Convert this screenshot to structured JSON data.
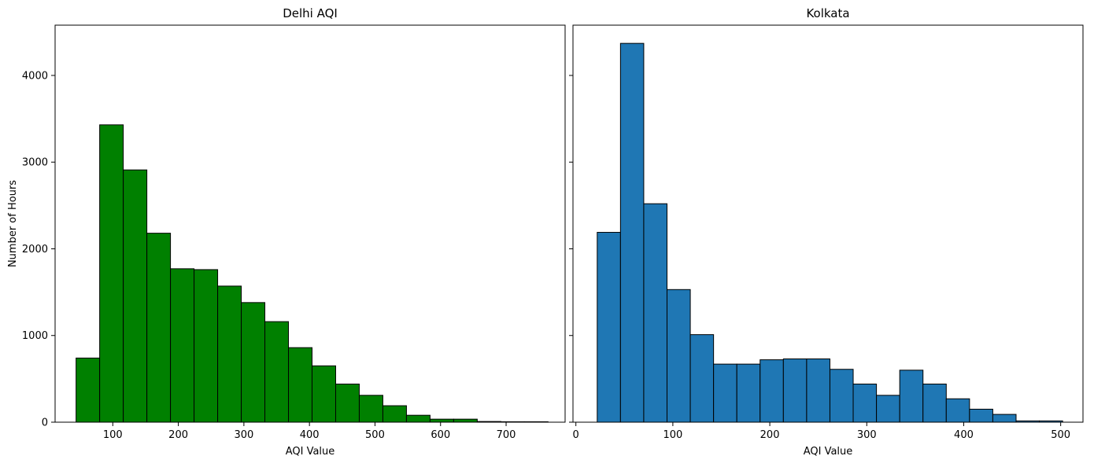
{
  "chart_data": [
    {
      "type": "bar",
      "title": "Delhi AQI",
      "xlabel": "AQI Value",
      "ylabel": "Number of Hours",
      "xlim": [
        12,
        790
      ],
      "ylim": [
        0,
        4580
      ],
      "xticks": [
        100,
        200,
        300,
        400,
        500,
        600,
        700
      ],
      "yticks": [
        0,
        1000,
        2000,
        3000,
        4000
      ],
      "color": "#008000",
      "edgecolor": "#000000",
      "bin_edges": [
        44,
        80,
        116,
        152,
        188,
        224,
        260,
        296,
        332,
        368,
        404,
        440,
        476,
        512,
        548,
        584,
        620,
        656,
        692,
        728,
        764
      ],
      "values": [
        740,
        3430,
        2910,
        2180,
        1770,
        1760,
        1570,
        1380,
        1160,
        860,
        650,
        440,
        310,
        190,
        80,
        35,
        35,
        8,
        5,
        5
      ],
      "grid": false
    },
    {
      "type": "bar",
      "title": "Kolkata",
      "xlabel": "AQI Value",
      "ylabel": "",
      "xlim": [
        -3,
        523
      ],
      "ylim": [
        0,
        4580
      ],
      "xticks": [
        0,
        100,
        200,
        300,
        400,
        500
      ],
      "yticks": [
        0,
        1000,
        2000,
        3000,
        4000
      ],
      "show_ytick_labels": false,
      "color": "#1f77b4",
      "edgecolor": "#000000",
      "bin_edges": [
        22,
        46,
        70,
        94,
        118,
        142,
        166,
        190,
        214,
        238,
        262,
        286,
        310,
        334,
        358,
        382,
        406,
        430,
        454,
        478,
        502
      ],
      "values": [
        2190,
        4370,
        2520,
        1530,
        1010,
        670,
        670,
        720,
        730,
        730,
        610,
        440,
        310,
        600,
        440,
        270,
        150,
        90,
        15,
        15
      ],
      "grid": false
    }
  ]
}
